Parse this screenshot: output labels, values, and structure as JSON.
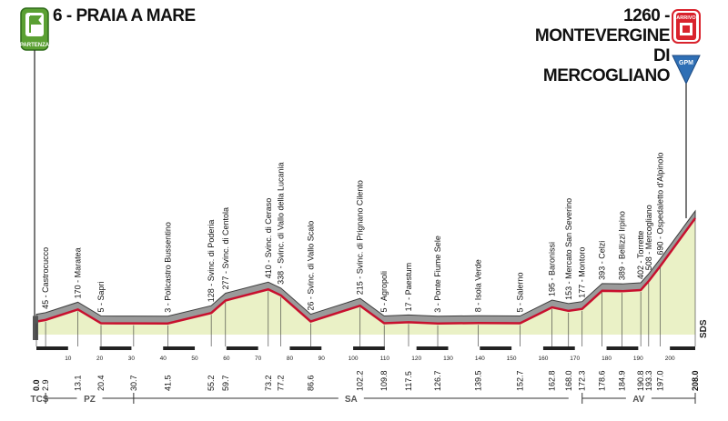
{
  "start": {
    "altitude": "6",
    "name": "PRAIA A MARE",
    "badge": "PARTENZA"
  },
  "finish": {
    "altitude": "1260",
    "name_line1": "MONTEVERGINE",
    "name_line2": "DI MERCOGLIANO",
    "badge": "ARRIVO",
    "gpm": "GPM"
  },
  "provinces": [
    "TCS",
    "PZ",
    "SA",
    "AV"
  ],
  "sds_label": "SDS",
  "colors": {
    "profile_fill": "#9a9a9a",
    "profile_dark": "#3d3d3d",
    "road": "#c8102e",
    "ground": "#eaf1c6",
    "start_green": "#5ba033",
    "finish_red": "#d9232d",
    "gpm_blue": "#2f6fb5"
  },
  "chart_data": {
    "type": "area",
    "xlim": [
      0,
      208
    ],
    "ylim": [
      0,
      1260
    ],
    "x_ticks": [
      "10",
      "20",
      "30",
      "40",
      "50",
      "60",
      "70",
      "80",
      "90",
      "100",
      "110",
      "120",
      "130",
      "140",
      "150",
      "160",
      "170",
      "180",
      "190",
      "200"
    ],
    "waypoints": [
      {
        "km": "0.0",
        "alt": "",
        "name": ""
      },
      {
        "km": "2.9",
        "alt": "45",
        "name": "Castrocucco"
      },
      {
        "km": "13.1",
        "alt": "170",
        "name": "Maratea"
      },
      {
        "km": "20.4",
        "alt": "5",
        "name": "Sapri"
      },
      {
        "km": "30.7",
        "alt": "",
        "name": ""
      },
      {
        "km": "41.5",
        "alt": "3",
        "name": "Policastro Bussentino"
      },
      {
        "km": "55.2",
        "alt": "128",
        "name": "Svinc. di Poderia"
      },
      {
        "km": "59.7",
        "alt": "277",
        "name": "Svinc. di Centola"
      },
      {
        "km": "73.2",
        "alt": "410",
        "name": "Svinc. di Ceraso"
      },
      {
        "km": "77.2",
        "alt": "338",
        "name": "Svinc. di Vallo della Lucania"
      },
      {
        "km": "86.6",
        "alt": "26",
        "name": "Svinc. di Vallo Scalo"
      },
      {
        "km": "102.2",
        "alt": "215",
        "name": "Svinc. di Prignano Cilento"
      },
      {
        "km": "109.8",
        "alt": "5",
        "name": "Agropoli"
      },
      {
        "km": "117.5",
        "alt": "17",
        "name": "Paestum"
      },
      {
        "km": "126.7",
        "alt": "3",
        "name": "Ponte Fiume Sele"
      },
      {
        "km": "139.5",
        "alt": "8",
        "name": "Isola Verde"
      },
      {
        "km": "152.7",
        "alt": "5",
        "name": "Salerno"
      },
      {
        "km": "162.8",
        "alt": "195",
        "name": "Baronissi"
      },
      {
        "km": "168.0",
        "alt": "153",
        "name": "Mercato San Severino"
      },
      {
        "km": "172.3",
        "alt": "177",
        "name": "Montoro"
      },
      {
        "km": "178.6",
        "alt": "393",
        "name": "Celzi"
      },
      {
        "km": "184.9",
        "alt": "389",
        "name": "Bellizzi Irpino"
      },
      {
        "km": "190.8",
        "alt": "402",
        "name": "Torrette"
      },
      {
        "km": "193.3",
        "alt": "508",
        "name": "Mercogliano"
      },
      {
        "km": "197.0",
        "alt": "690",
        "name": "Ospedaletto d'Alpinolo"
      },
      {
        "km": "208.0",
        "alt": "1260",
        "name": ""
      }
    ],
    "province_ranges": [
      {
        "name": "TCS",
        "from": 0,
        "to": 2
      },
      {
        "name": "PZ",
        "from": 2.9,
        "to": 30.7
      },
      {
        "name": "SA",
        "from": 30.7,
        "to": 168.0
      },
      {
        "name": "AV",
        "from": 172.3,
        "to": 208.0
      }
    ]
  }
}
